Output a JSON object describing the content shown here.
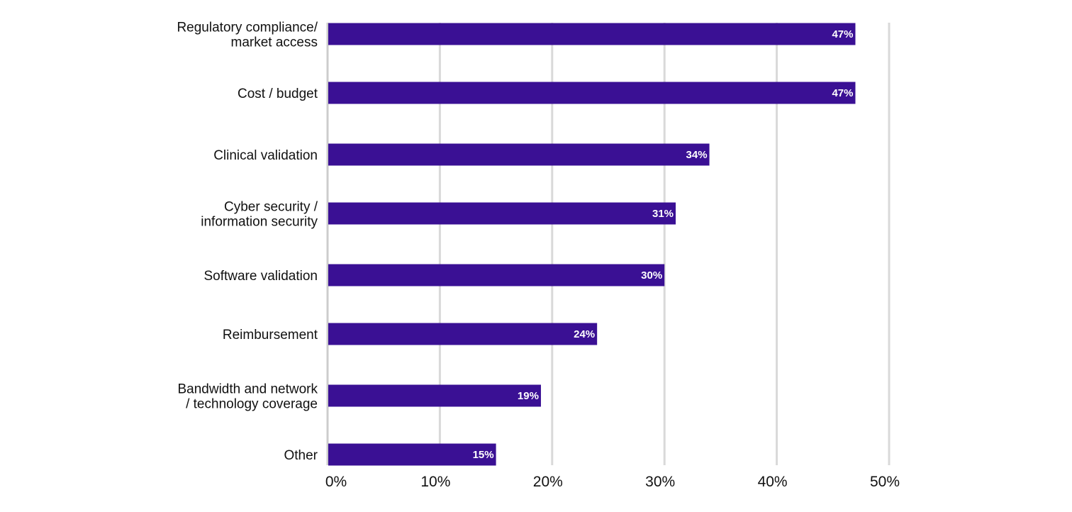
{
  "chart_data": {
    "type": "bar",
    "orientation": "horizontal",
    "categories": [
      "Regulatory compliance/ market access",
      "Cost / budget",
      "Clinical validation",
      "Cyber security / information security",
      "Software validation",
      "Reimbursement",
      "Bandwidth and network / technology coverage",
      "Other"
    ],
    "category_lines": [
      [
        "Regulatory compliance/",
        "market access"
      ],
      [
        "Cost / budget"
      ],
      [
        "Clinical validation"
      ],
      [
        "Cyber security /",
        "information security"
      ],
      [
        "Software validation"
      ],
      [
        "Reimbursement"
      ],
      [
        "Bandwidth and network",
        "/ technology coverage"
      ],
      [
        "Other"
      ]
    ],
    "values": [
      47,
      47,
      34,
      31,
      30,
      24,
      19,
      15
    ],
    "data_labels": [
      "47%",
      "47%",
      "34%",
      "31%",
      "30%",
      "24%",
      "19%",
      "15%"
    ],
    "x_ticks": [
      0,
      10,
      20,
      30,
      40,
      50
    ],
    "x_tick_labels": [
      "0%",
      "10%",
      "20%",
      "30%",
      "40%",
      "50%"
    ],
    "xlim": [
      0,
      50
    ],
    "title": "",
    "xlabel": "",
    "ylabel": "",
    "grid": "vertical",
    "legend": "none",
    "colors": {
      "bar": "#3a1094",
      "grid": "#d9d9d9",
      "axis": "#cccccc",
      "label_text": "#ffffff"
    }
  }
}
